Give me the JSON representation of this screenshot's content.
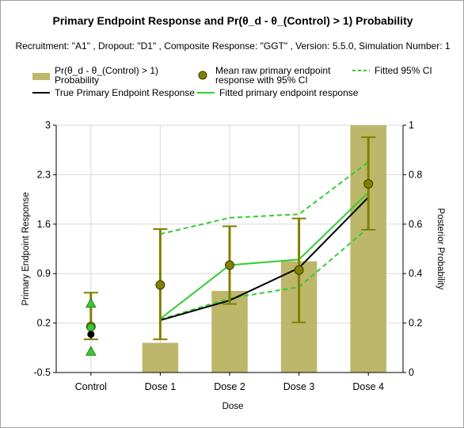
{
  "chart_data": {
    "type": "bar",
    "title": "Primary Endpoint Response and Pr(θ_d - θ_(Control) > 1) Probability",
    "subtitle": "Recruitment: \"A1\" , Dropout: \"D1\" , Composite Response: \"GGT\" , Version: 5.5.0, Simulation Number: 1",
    "xlabel": "Dose",
    "ylabel": "Primary Endpoint Response",
    "y2label": "Posterior Probability",
    "categories": [
      "Control",
      "Dose 1",
      "Dose 2",
      "Dose 3",
      "Dose 4"
    ],
    "ylim": [
      -0.5,
      3
    ],
    "y2lim": [
      0,
      1
    ],
    "yticks": [
      "-0.5",
      "0.2",
      "0.9",
      "1.6",
      "2.3",
      "3"
    ],
    "y2ticks": [
      "0",
      "0.2",
      "0.4",
      "0.6",
      "0.8",
      "1"
    ],
    "grid": true,
    "legend": [
      {
        "label": "Pr(θ_d - θ_(Control) > 1)",
        "label2": "Probability",
        "kind": "bar",
        "color": "#bdb76b"
      },
      {
        "label": "Mean raw primary endpoint",
        "label2": "response with 95% CI",
        "kind": "marker",
        "color": "#808000"
      },
      {
        "label": "Fitted 95% CI",
        "kind": "dashed",
        "color": "#32cd32"
      },
      {
        "label": "True Primary Endpoint Response",
        "kind": "line",
        "color": "#000000"
      },
      {
        "label": "Fitted primary endpoint response",
        "kind": "line",
        "color": "#32cd32"
      }
    ],
    "probability_bars": {
      "name": "Pr(θ_d - θ_(Control) > 1) Probability",
      "axis": "right",
      "color": "#bdb76b",
      "values": [
        0,
        0.12,
        0.33,
        0.45,
        1.0
      ]
    },
    "mean_raw": {
      "name": "Mean raw primary endpoint response with 95% CI",
      "color": "#808000",
      "values": [
        0.15,
        0.74,
        1.02,
        0.95,
        2.17
      ],
      "ci_low": [
        -0.03,
        -0.03,
        0.47,
        0.21,
        1.52
      ],
      "ci_high": [
        0.63,
        1.53,
        1.57,
        1.68,
        2.83
      ]
    },
    "true_response": {
      "name": "True Primary Endpoint Response",
      "color": "#000000",
      "values": [
        0.04,
        0.24,
        0.52,
        0.98,
        1.98
      ]
    },
    "fitted_response": {
      "name": "Fitted primary endpoint response",
      "color": "#32cd32",
      "values": [
        0.14,
        0.26,
        1.02,
        1.1,
        2.05
      ]
    },
    "fitted_ci_low": {
      "name": "Fitted 95% CI",
      "color": "#32cd32",
      "values": [
        -0.2,
        0.25,
        0.55,
        0.71,
        1.55
      ]
    },
    "fitted_ci_high": {
      "name": "Fitted 95% CI",
      "color": "#32cd32",
      "values": [
        0.48,
        1.46,
        1.69,
        1.74,
        2.48
      ]
    }
  }
}
